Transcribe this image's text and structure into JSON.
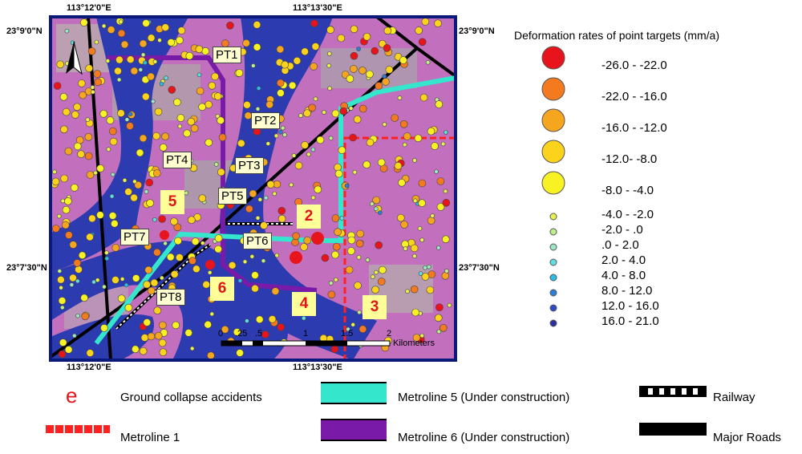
{
  "map": {
    "coords": {
      "top_left_lon": "113°12'0\"E",
      "top_mid_lon": "113°13'30\"E",
      "bottom_left_lon": "113°12'0\"E",
      "bottom_mid_lon": "113°13'30\"E",
      "left_top_lat": "23°9'0\"N",
      "right_top_lat": "23°9'0\"N",
      "left_mid_lat": "23°7'30\"N",
      "right_mid_lat": "23°7'30\"N"
    },
    "point_targets": [
      "PT1",
      "PT2",
      "PT3",
      "PT4",
      "PT5",
      "PT6",
      "PT7",
      "PT8"
    ],
    "zones": [
      "5",
      "2",
      "6",
      "4",
      "3"
    ],
    "scale": {
      "ticks": [
        "0",
        ".25",
        ".5",
        "1",
        "1.5",
        "2"
      ],
      "unit": "Kilometers"
    },
    "colors": {
      "metroline1": "#ff2020",
      "metroline5": "#33e6cc",
      "metroline6": "#7a1aa8",
      "road": "#000000",
      "river": "#2c3bb0",
      "land": "#c26fbd"
    }
  },
  "legend": {
    "title": "Deformation rates of point targets (mm/a)",
    "rates": [
      {
        "label": "-26.0 - -22.0",
        "color": "#e8141b"
      },
      {
        "label": "-22.0 - -16.0",
        "color": "#f37a1e"
      },
      {
        "label": "-16.0 - -12.0",
        "color": "#f6a51f"
      },
      {
        "label": "-12.0- -8.0",
        "color": "#fbd21c"
      },
      {
        "label": "-8.0 - -4.0",
        "color": "#f8f224"
      },
      {
        "label": "-4.0 - -2.0",
        "color": "#e9f24f"
      },
      {
        "label": "-2.0 - .0",
        "color": "#bdf08a"
      },
      {
        "label": ".0 - 2.0",
        "color": "#9be8c3"
      },
      {
        "label": "2.0 - 4.0",
        "color": "#5ee0e0"
      },
      {
        "label": "4.0 - 8.0",
        "color": "#2bbde8"
      },
      {
        "label": "8.0 - 12.0",
        "color": "#2a7fdc"
      },
      {
        "label": "12.0 - 16.0",
        "color": "#2b4bc7"
      },
      {
        "label": "16.0 - 21.0",
        "color": "#2b2ea6"
      }
    ],
    "features": {
      "collapse_symbol": "e",
      "collapse": "Ground collapse accidents",
      "metroline5": "Metroline 5 (Under construction)",
      "railway": "Railway",
      "metroline1": "Metroline 1",
      "metroline6": "Metroline 6 (Under construction)",
      "roads": "Major Roads"
    }
  }
}
